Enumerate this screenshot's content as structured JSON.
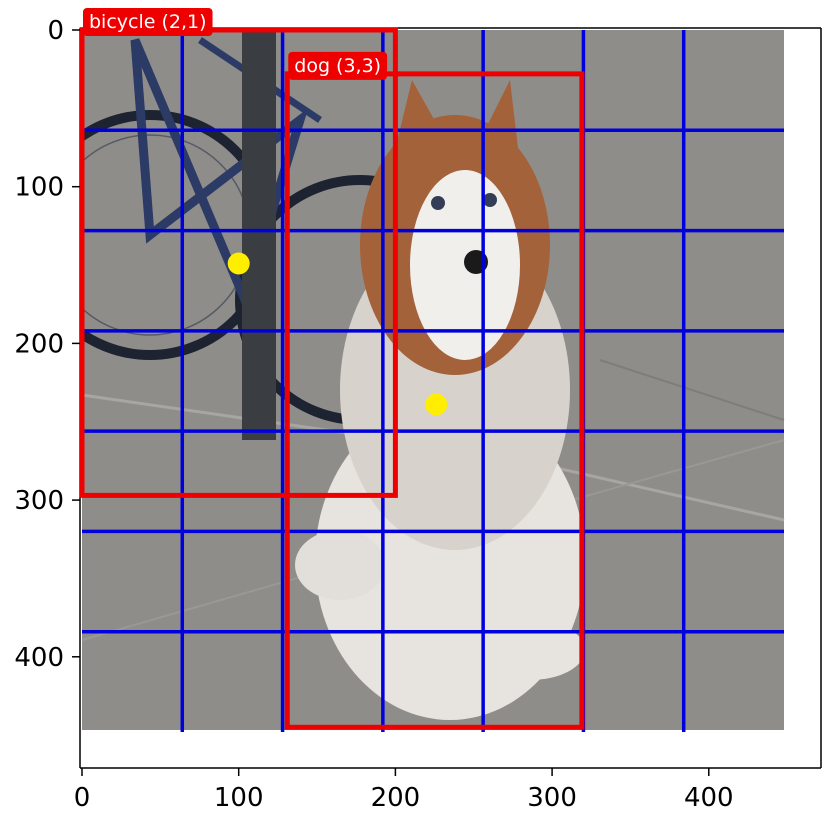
{
  "chart_data": {
    "type": "scatter",
    "title": "",
    "xlabel": "",
    "ylabel": "",
    "xlim": [
      0,
      470
    ],
    "ylim": [
      470,
      0
    ],
    "image_extent": [
      0,
      448,
      448,
      0
    ],
    "x_ticks": [
      0,
      100,
      200,
      300,
      400
    ],
    "y_ticks": [
      0,
      100,
      200,
      300,
      400
    ],
    "grid": {
      "spacing": 64,
      "vertical": [
        64,
        128,
        192,
        256,
        320,
        384
      ],
      "horizontal": [
        64,
        128,
        192,
        256,
        320,
        384
      ],
      "span": [
        0,
        448
      ],
      "color": "#0000dd"
    },
    "boxes": [
      {
        "label": "bicycle (2,1)",
        "x1": 0,
        "y1": 0,
        "x2": 200,
        "y2": 297,
        "color": "#ee0000"
      },
      {
        "label": "dog (3,3)",
        "x1": 131,
        "y1": 28,
        "x2": 319,
        "y2": 445,
        "color": "#ee0000"
      }
    ],
    "points": [
      {
        "x": 100,
        "y": 149,
        "color": "#ffee00"
      },
      {
        "x": 226,
        "y": 239,
        "color": "#ffee00"
      }
    ],
    "background_image": "dog-and-bicycle-photo"
  }
}
